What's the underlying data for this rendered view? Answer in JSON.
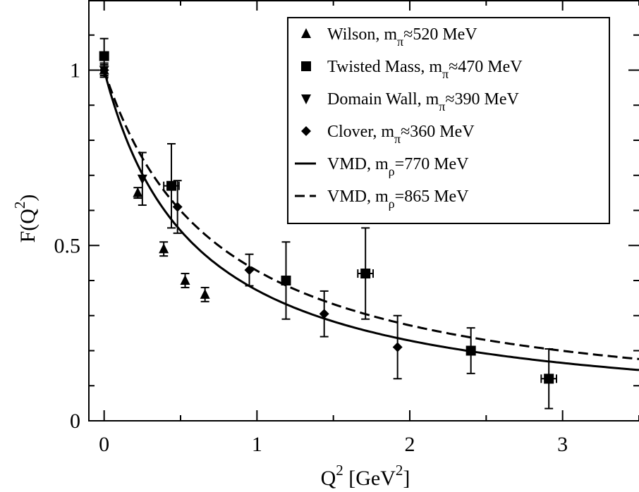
{
  "chart_data": {
    "type": "scatter",
    "xlabel": {
      "main": "Q",
      "sup": "2",
      "unit_pre": " [GeV",
      "unit_sup": "2",
      "unit_post": "]"
    },
    "ylabel": {
      "main": "F(Q",
      "sup": "2",
      "post": ")"
    },
    "xlim": [
      -0.1,
      3.5
    ],
    "ylim": [
      0,
      1.2
    ],
    "x_ticks": [
      0,
      1,
      2,
      3
    ],
    "x_tick_labels": [
      "0",
      "1",
      "2",
      "3"
    ],
    "y_ticks": [
      0,
      0.5,
      1
    ],
    "y_tick_labels": [
      "0",
      "0.5",
      "1"
    ],
    "grid": false,
    "legend_position": "top-right",
    "series": [
      {
        "marker": "triangle-up",
        "legend": {
          "pre": "Wilson, m",
          "sub": "π",
          "post": "≈520 MeV"
        },
        "points": [
          {
            "x": 0.0,
            "y": 1.0,
            "yerr": 0.02,
            "xerr": 0.0
          },
          {
            "x": 0.22,
            "y": 0.65,
            "yerr": 0.015,
            "xerr": 0.0
          },
          {
            "x": 0.39,
            "y": 0.49,
            "yerr": 0.02,
            "xerr": 0.0
          },
          {
            "x": 0.53,
            "y": 0.4,
            "yerr": 0.02,
            "xerr": 0.0
          },
          {
            "x": 0.66,
            "y": 0.36,
            "yerr": 0.02,
            "xerr": 0.0
          }
        ]
      },
      {
        "marker": "square",
        "legend": {
          "pre": "Twisted Mass, m",
          "sub": "π",
          "post": "≈470 MeV"
        },
        "points": [
          {
            "x": 0.0,
            "y": 1.04,
            "yerr": 0.05,
            "xerr": 0.0
          },
          {
            "x": 0.44,
            "y": 0.67,
            "yerr": 0.12,
            "xerr": 0.05
          },
          {
            "x": 1.19,
            "y": 0.4,
            "yerr": 0.11,
            "xerr": 0.0
          },
          {
            "x": 1.71,
            "y": 0.42,
            "yerr": 0.13,
            "xerr": 0.05
          },
          {
            "x": 2.4,
            "y": 0.2,
            "yerr": 0.065,
            "xerr": 0.0
          },
          {
            "x": 2.91,
            "y": 0.12,
            "yerr": 0.085,
            "xerr": 0.05
          }
        ]
      },
      {
        "marker": "triangle-down",
        "legend": {
          "pre": "Domain Wall, m",
          "sub": "π",
          "post": "≈390 MeV"
        },
        "points": [
          {
            "x": 0.0,
            "y": 1.0,
            "yerr": 0.02,
            "xerr": 0.0
          },
          {
            "x": 0.25,
            "y": 0.69,
            "yerr": 0.075,
            "xerr": 0.0
          }
        ]
      },
      {
        "marker": "diamond",
        "legend": {
          "pre": "Clover, m",
          "sub": "π",
          "post": "≈360 MeV"
        },
        "points": [
          {
            "x": 0.0,
            "y": 1.0,
            "yerr": 0.015,
            "xerr": 0.0
          },
          {
            "x": 0.48,
            "y": 0.61,
            "yerr": 0.075,
            "xerr": 0.0
          },
          {
            "x": 0.95,
            "y": 0.43,
            "yerr": 0.045,
            "xerr": 0.0
          },
          {
            "x": 1.44,
            "y": 0.305,
            "yerr": 0.065,
            "xerr": 0.0
          },
          {
            "x": 1.92,
            "y": 0.21,
            "yerr": 0.09,
            "xerr": 0.0
          }
        ]
      }
    ],
    "curves": [
      {
        "style": "solid",
        "legend": {
          "pre": "VMD, m",
          "sub": "ρ",
          "post": "=770 MeV"
        },
        "mass_gev": 0.77
      },
      {
        "style": "dashed",
        "legend": {
          "pre": "VMD, m",
          "sub": "ρ",
          "post": "=865 MeV"
        },
        "mass_gev": 0.865
      }
    ]
  }
}
